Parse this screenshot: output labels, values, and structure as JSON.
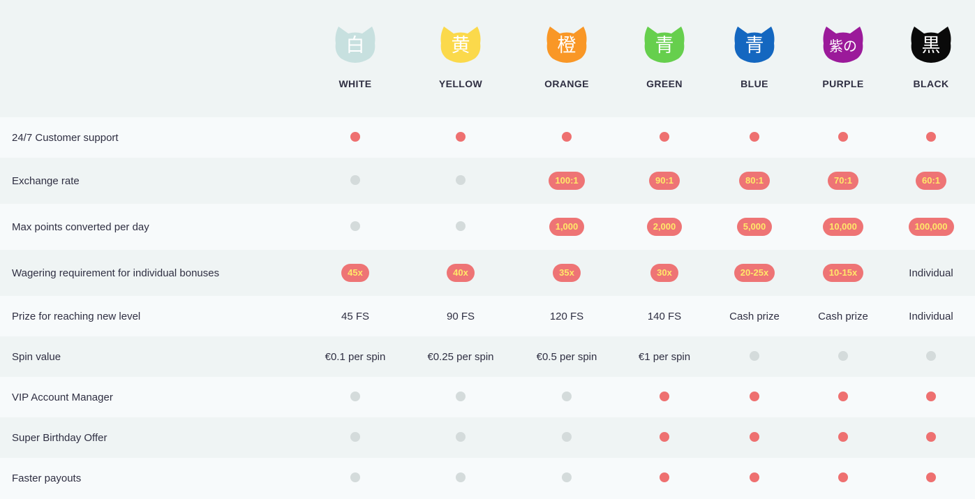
{
  "levels": [
    {
      "name": "WHITE",
      "kanji": "白",
      "color": "#c7e0df",
      "kanji_color": "#ffffff"
    },
    {
      "name": "YELLOW",
      "kanji": "黄",
      "color": "#fbd94b",
      "kanji_color": "#ffffff"
    },
    {
      "name": "ORANGE",
      "kanji": "橙",
      "color": "#f99726",
      "kanji_color": "#ffffff"
    },
    {
      "name": "GREEN",
      "kanji": "青",
      "color": "#66cf4d",
      "kanji_color": "#ffffff"
    },
    {
      "name": "BLUE",
      "kanji": "青",
      "color": "#1467c0",
      "kanji_color": "#ffffff"
    },
    {
      "name": "PURPLE",
      "kanji": "紫の",
      "color": "#9b1a9a",
      "kanji_color": "#ffffff"
    },
    {
      "name": "BLACK",
      "kanji": "黒",
      "color": "#0a0a0a",
      "kanji_color": "#ffffff"
    }
  ],
  "colors": {
    "dot_on": "#ee7070",
    "dot_off": "#d4dbdb",
    "pill_bg": "#ee7475",
    "pill_text": "#ffe86a",
    "header_bg": "#eff4f4",
    "text": "#2f2f42"
  },
  "rows": [
    {
      "label": "24/7 Customer support",
      "cells": [
        {
          "type": "dot",
          "on": true
        },
        {
          "type": "dot",
          "on": true
        },
        {
          "type": "dot",
          "on": true
        },
        {
          "type": "dot",
          "on": true
        },
        {
          "type": "dot",
          "on": true
        },
        {
          "type": "dot",
          "on": true
        },
        {
          "type": "dot",
          "on": true
        }
      ]
    },
    {
      "label": "Exchange rate",
      "cells": [
        {
          "type": "dot",
          "on": false
        },
        {
          "type": "dot",
          "on": false
        },
        {
          "type": "pill",
          "text": "100:1"
        },
        {
          "type": "pill",
          "text": "90:1"
        },
        {
          "type": "pill",
          "text": "80:1"
        },
        {
          "type": "pill",
          "text": "70:1"
        },
        {
          "type": "pill",
          "text": "60:1"
        }
      ]
    },
    {
      "label": "Max points converted per day",
      "cells": [
        {
          "type": "dot",
          "on": false
        },
        {
          "type": "dot",
          "on": false
        },
        {
          "type": "pill",
          "text": "1,000"
        },
        {
          "type": "pill",
          "text": "2,000"
        },
        {
          "type": "pill",
          "text": "5,000"
        },
        {
          "type": "pill",
          "text": "10,000"
        },
        {
          "type": "pill",
          "text": "100,000"
        }
      ]
    },
    {
      "label": "Wagering requirement for individual bonuses",
      "cells": [
        {
          "type": "pill",
          "text": "45x"
        },
        {
          "type": "pill",
          "text": "40x"
        },
        {
          "type": "pill",
          "text": "35x"
        },
        {
          "type": "pill",
          "text": "30x"
        },
        {
          "type": "pill",
          "text": "20-25x"
        },
        {
          "type": "pill",
          "text": "10-15x"
        },
        {
          "type": "text",
          "text": "Individual"
        }
      ]
    },
    {
      "label": "Prize for reaching new level",
      "cells": [
        {
          "type": "text",
          "text": "45 FS"
        },
        {
          "type": "text",
          "text": "90 FS"
        },
        {
          "type": "text",
          "text": "120 FS"
        },
        {
          "type": "text",
          "text": "140 FS"
        },
        {
          "type": "text",
          "text": "Cash prize"
        },
        {
          "type": "text",
          "text": "Cash prize"
        },
        {
          "type": "text",
          "text": "Individual"
        }
      ]
    },
    {
      "label": "Spin value",
      "cells": [
        {
          "type": "text",
          "text": "€0.1 per spin"
        },
        {
          "type": "text",
          "text": "€0.25 per spin"
        },
        {
          "type": "text",
          "text": "€0.5 per spin"
        },
        {
          "type": "text",
          "text": "€1 per spin"
        },
        {
          "type": "dot",
          "on": false
        },
        {
          "type": "dot",
          "on": false
        },
        {
          "type": "dot",
          "on": false
        }
      ]
    },
    {
      "label": "VIP Account Manager",
      "cells": [
        {
          "type": "dot",
          "on": false
        },
        {
          "type": "dot",
          "on": false
        },
        {
          "type": "dot",
          "on": false
        },
        {
          "type": "dot",
          "on": true
        },
        {
          "type": "dot",
          "on": true
        },
        {
          "type": "dot",
          "on": true
        },
        {
          "type": "dot",
          "on": true
        }
      ]
    },
    {
      "label": "Super Birthday Offer",
      "cells": [
        {
          "type": "dot",
          "on": false
        },
        {
          "type": "dot",
          "on": false
        },
        {
          "type": "dot",
          "on": false
        },
        {
          "type": "dot",
          "on": true
        },
        {
          "type": "dot",
          "on": true
        },
        {
          "type": "dot",
          "on": true
        },
        {
          "type": "dot",
          "on": true
        }
      ]
    },
    {
      "label": "Faster payouts",
      "cells": [
        {
          "type": "dot",
          "on": false
        },
        {
          "type": "dot",
          "on": false
        },
        {
          "type": "dot",
          "on": false
        },
        {
          "type": "dot",
          "on": true
        },
        {
          "type": "dot",
          "on": true
        },
        {
          "type": "dot",
          "on": true
        },
        {
          "type": "dot",
          "on": true
        }
      ]
    }
  ]
}
